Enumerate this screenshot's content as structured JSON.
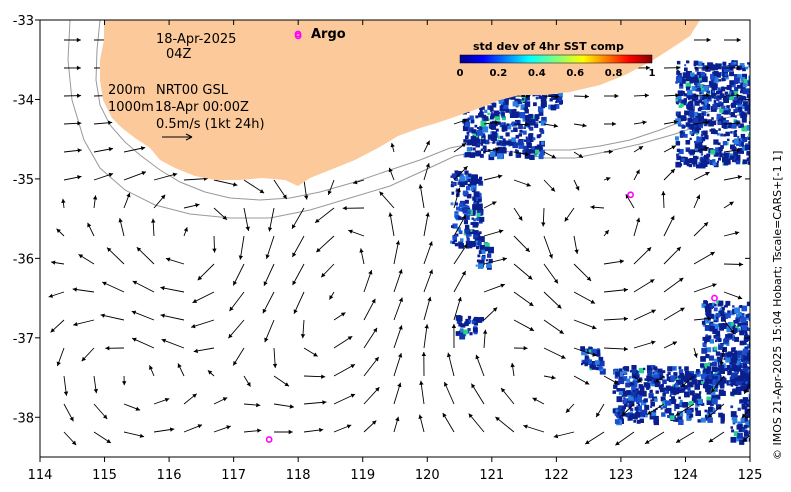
{
  "map": {
    "date": "18-Apr-2025",
    "hour": "04Z",
    "depth_line_1": "200m",
    "depth_line_2": "1000m",
    "product": "NRT00 GSL",
    "analysis_time": "18-Apr 00:00Z",
    "vector_scale": "0.5m/s (1kt 24h)",
    "credit": "© IMOS 21-Apr-2025 15:04 Hobart; Tscale=CARS+[-1 1]",
    "legend_argo": "Argo",
    "colorbar": {
      "title": "std dev of 4hr SST comp",
      "ticks": [
        "0",
        "0.2",
        "0.4",
        "0.6",
        "0.8",
        "1"
      ]
    },
    "x_axis": {
      "ticks": [
        "114",
        "115",
        "116",
        "117",
        "118",
        "119",
        "120",
        "121",
        "122",
        "123",
        "124",
        "125"
      ]
    },
    "y_axis": {
      "ticks": [
        "-33",
        "-34",
        "-35",
        "-36",
        "-37",
        "-38"
      ]
    },
    "colors": {
      "land": "#fcc99b",
      "argo": "#ff00ff",
      "sst_low": "#0a1f8f",
      "isobath": "#999999"
    }
  },
  "chart_data": {
    "type": "map",
    "x_range": [
      114,
      125
    ],
    "y_range": [
      -38.5,
      -33
    ],
    "argo_floats": [
      {
        "lon": 118.0,
        "lat": -33.2
      },
      {
        "lon": 123.15,
        "lat": -35.2
      },
      {
        "lon": 124.45,
        "lat": -36.5
      },
      {
        "lon": 117.55,
        "lat": -38.28
      }
    ]
  }
}
